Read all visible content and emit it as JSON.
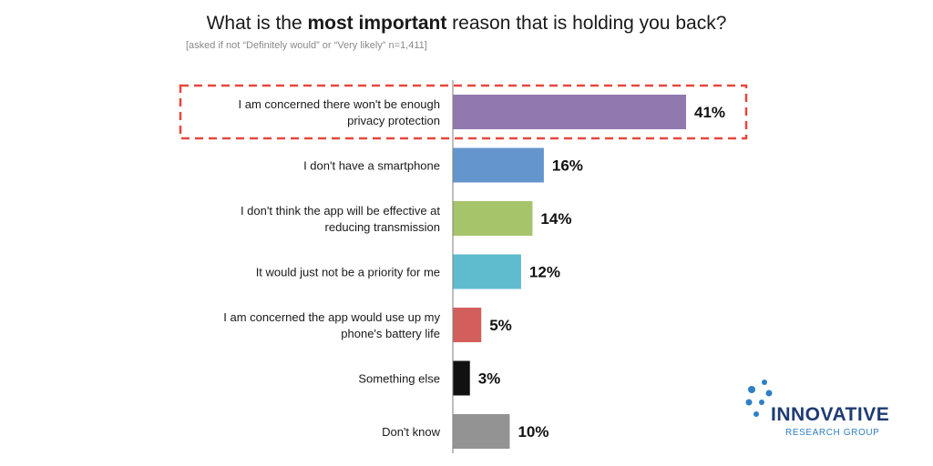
{
  "title": {
    "prefix": "What is the ",
    "emphasis": "most important",
    "suffix": " reason that is holding you back?"
  },
  "subtitle": "[asked if not “Definitely would” or “Very likely” n=1,411]",
  "logo": {
    "name": "INNOVATIVE",
    "subtitle": "RESEARCH GROUP"
  },
  "highlight": {
    "category_index": 0,
    "color": "#e8473b"
  },
  "chart_data": {
    "type": "bar",
    "orientation": "horizontal",
    "categories": [
      "I am concerned there won't be enough privacy protection",
      "I don't have a smartphone",
      "I don't think the app will be effective at reducing transmission",
      "It would just not be a priority for me",
      "I am concerned the app would use up my phone's battery life",
      "Something else",
      "Don't know"
    ],
    "category_lines": [
      [
        "I am concerned there won't be enough",
        "privacy protection"
      ],
      [
        "I don't have a smartphone"
      ],
      [
        "I don't think the app will be effective at",
        "reducing transmission"
      ],
      [
        "It would just not be a priority for me"
      ],
      [
        "I am concerned the app would use up my",
        "phone's battery life"
      ],
      [
        "Something else"
      ],
      [
        "Don't know"
      ]
    ],
    "values": [
      41,
      16,
      14,
      12,
      5,
      3,
      10
    ],
    "value_labels": [
      "41%",
      "16%",
      "14%",
      "12%",
      "5%",
      "3%",
      "10%"
    ],
    "colors": [
      "#9179b0",
      "#6495cd",
      "#a6c46a",
      "#5fbccf",
      "#d25f5b",
      "#111111",
      "#939393"
    ],
    "unit": "%",
    "xlim": [
      0,
      45
    ],
    "grid": false,
    "legend": "none"
  }
}
